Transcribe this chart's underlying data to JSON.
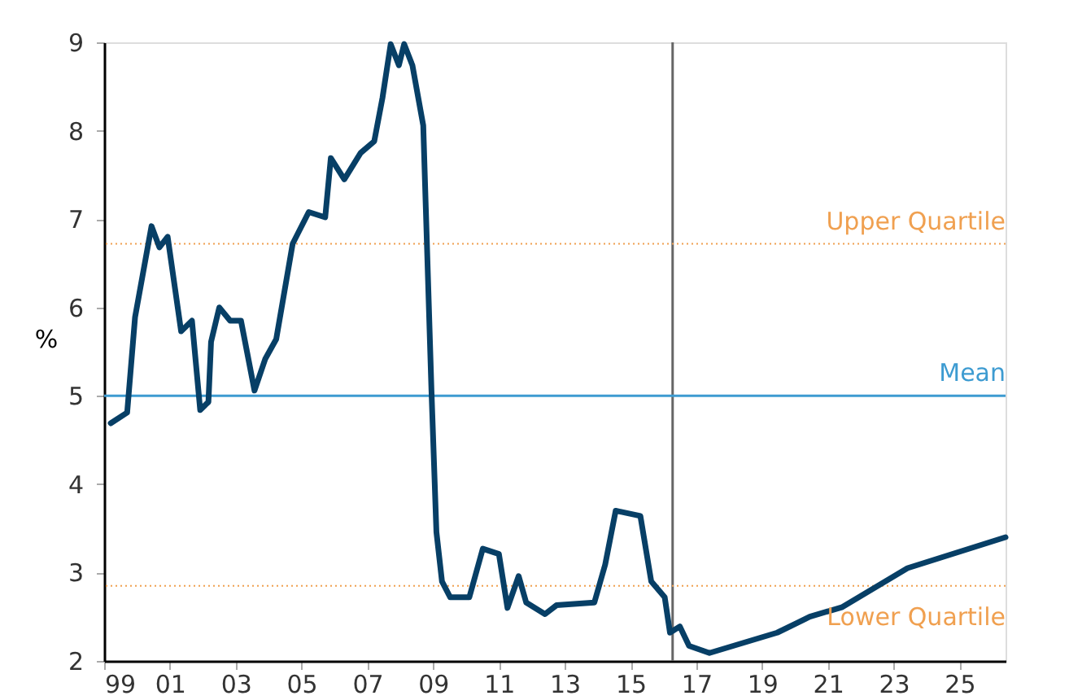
{
  "chart_data": {
    "type": "line",
    "ylabel": "%",
    "x": [
      1999.2,
      1999.7,
      1999.94,
      2000.44,
      2000.68,
      2000.93,
      2001.34,
      2001.67,
      2001.92,
      2002.17,
      2002.25,
      2002.5,
      2002.83,
      2003.16,
      2003.57,
      2003.9,
      2004.23,
      2004.73,
      2005.22,
      2005.72,
      2005.89,
      2006.3,
      2006.8,
      2007.21,
      2007.46,
      2007.71,
      2007.96,
      2008.12,
      2008.37,
      2008.7,
      2008.95,
      2009.1,
      2009.27,
      2009.52,
      2010.1,
      2010.51,
      2011.0,
      2011.26,
      2011.6,
      2011.83,
      2012.4,
      2012.75,
      2013.9,
      2014.23,
      2014.55,
      2015.3,
      2015.63,
      2016.04,
      2016.2,
      2016.5,
      2016.78,
      2017.4,
      2019.46,
      2020.45,
      2021.44,
      2023.42,
      2026.4
    ],
    "series": [
      {
        "color": "#073f66",
        "values": [
          4.69,
          4.81,
          5.89,
          6.92,
          6.68,
          6.8,
          5.73,
          5.85,
          4.84,
          4.93,
          5.61,
          6.0,
          5.85,
          5.85,
          5.06,
          5.42,
          5.64,
          6.72,
          7.08,
          7.02,
          7.69,
          7.45,
          7.75,
          7.88,
          8.37,
          8.98,
          8.74,
          8.98,
          8.74,
          8.06,
          5.06,
          3.46,
          2.9,
          2.72,
          2.72,
          3.27,
          3.21,
          2.6,
          2.96,
          2.66,
          2.53,
          2.63,
          2.66,
          3.09,
          3.7,
          3.64,
          2.9,
          2.72,
          2.32,
          2.39,
          2.17,
          2.09,
          2.32,
          2.5,
          2.61,
          3.05,
          3.4
        ]
      }
    ],
    "xlim": [
      1999,
      2026.4
    ],
    "ylim": [
      2,
      9
    ],
    "xticks": [
      {
        "value": 1999,
        "label": "99"
      },
      {
        "value": 2001,
        "label": "01"
      },
      {
        "value": 2003,
        "label": "03"
      },
      {
        "value": 2005,
        "label": "05"
      },
      {
        "value": 2007,
        "label": "07"
      },
      {
        "value": 2009,
        "label": "09"
      },
      {
        "value": 2011,
        "label": "11"
      },
      {
        "value": 2013,
        "label": "13"
      },
      {
        "value": 2015,
        "label": "15"
      },
      {
        "value": 2017,
        "label": "17"
      },
      {
        "value": 2019,
        "label": "19"
      },
      {
        "value": 2021,
        "label": "21"
      },
      {
        "value": 2023,
        "label": "23"
      },
      {
        "value": 2025,
        "label": "25"
      }
    ],
    "yticks": [
      2,
      3,
      4,
      5,
      6,
      7,
      8,
      9
    ],
    "ref_lines": [
      {
        "axis": "y",
        "value": 6.72,
        "label": "Upper Quartile",
        "color": "#f0a050",
        "line_style": "dotted"
      },
      {
        "axis": "y",
        "value": 5,
        "label": "Mean",
        "color": "#3d9bd1",
        "line_style": "solid"
      },
      {
        "axis": "y",
        "value": 2.85,
        "label": "Lower Quartile",
        "color": "#f0a050",
        "line_style": "dotted"
      },
      {
        "axis": "x",
        "value": 2016.28,
        "color": "#666666",
        "line_style": "solid"
      }
    ],
    "grid": false,
    "marker": "none",
    "line_style": "solid"
  }
}
